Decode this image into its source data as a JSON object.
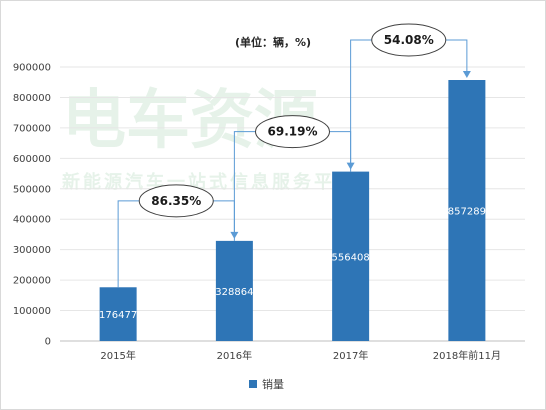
{
  "chart_data": {
    "type": "bar",
    "unit_label": "(单位：辆，%)",
    "categories": [
      "2015年",
      "2016年",
      "2017年",
      "2018年前11月"
    ],
    "series": [
      {
        "name": "销量",
        "values": [
          176477,
          328864,
          556408,
          857289
        ],
        "color": "#2e75b6"
      }
    ],
    "ylim": [
      0,
      900000
    ],
    "yticks": [
      0,
      100000,
      200000,
      300000,
      400000,
      500000,
      600000,
      700000,
      800000,
      900000
    ],
    "growth_annotations": [
      {
        "label": "86.35%",
        "from_index": 0,
        "to_index": 1
      },
      {
        "label": "69.19%",
        "from_index": 1,
        "to_index": 2
      },
      {
        "label": "54.08%",
        "from_index": 2,
        "to_index": 3
      }
    ],
    "grid": true,
    "legend_position": "bottom",
    "watermark": {
      "main": "电车资源",
      "sub": "新能源汽车一站式信息服务平台"
    }
  }
}
